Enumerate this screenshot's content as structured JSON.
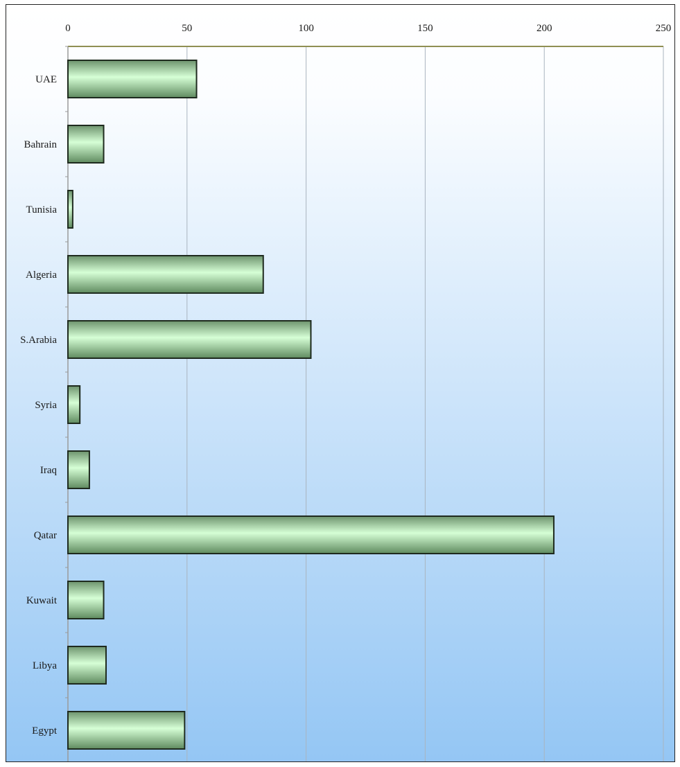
{
  "chart_data": {
    "type": "bar",
    "orientation": "horizontal",
    "categories": [
      "UAE",
      "Bahrain",
      "Tunisia",
      "Algeria",
      "S.Arabia",
      "Syria",
      "Iraq",
      "Qatar",
      "Kuwait",
      "Libya",
      "Egypt"
    ],
    "values": [
      54,
      15,
      2,
      82,
      102,
      5,
      9,
      204,
      15,
      16,
      49
    ],
    "xlim": [
      0,
      250
    ],
    "xticks": [
      0,
      50,
      100,
      150,
      200,
      250
    ],
    "x_axis_position": "top",
    "title": "",
    "xlabel": "",
    "ylabel": "",
    "grid": true,
    "legend": "none"
  },
  "colors": {
    "background_top": "#ffffff",
    "background_bottom": "#94c6f4",
    "bar_light": "#d6ffd6",
    "bar_dark": "#5f8a5f",
    "bar_border": "#1e2a1e",
    "grid": "#a9b4bf",
    "axis": "#8f8f52"
  }
}
